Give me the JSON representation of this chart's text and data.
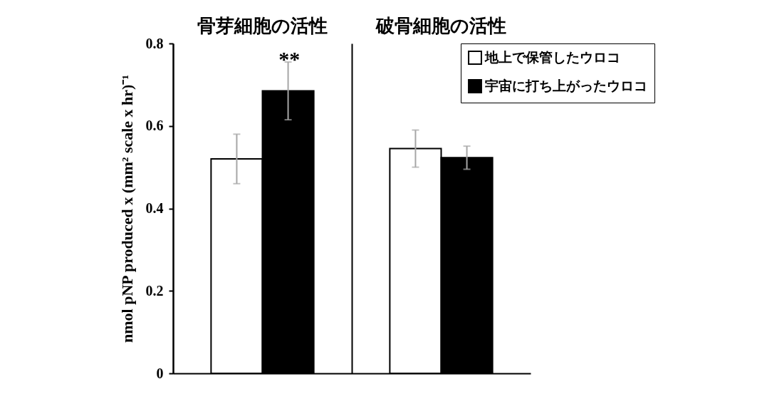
{
  "chart_data": {
    "type": "bar",
    "ylabel": "nmol pNP produced x (mm² scale x hr)⁻¹",
    "categories": [
      "骨芽細胞の活性",
      "破骨細胞の活性"
    ],
    "ylim": [
      0,
      0.8
    ],
    "yticks": [
      0,
      0.2,
      0.4,
      0.6,
      0.8
    ],
    "grid": "x",
    "legend": "top right",
    "series": [
      {
        "name": "地上で保管したウロコ",
        "color": "#ffffff",
        "values": [
          0.52,
          0.545
        ],
        "errors": [
          0.06,
          0.045
        ]
      },
      {
        "name": "宇宙に打ち上がったウロコ",
        "color": "#000000",
        "values": [
          0.685,
          0.523
        ],
        "errors": [
          0.07,
          0.028
        ]
      }
    ],
    "annotations": [
      "**"
    ]
  }
}
